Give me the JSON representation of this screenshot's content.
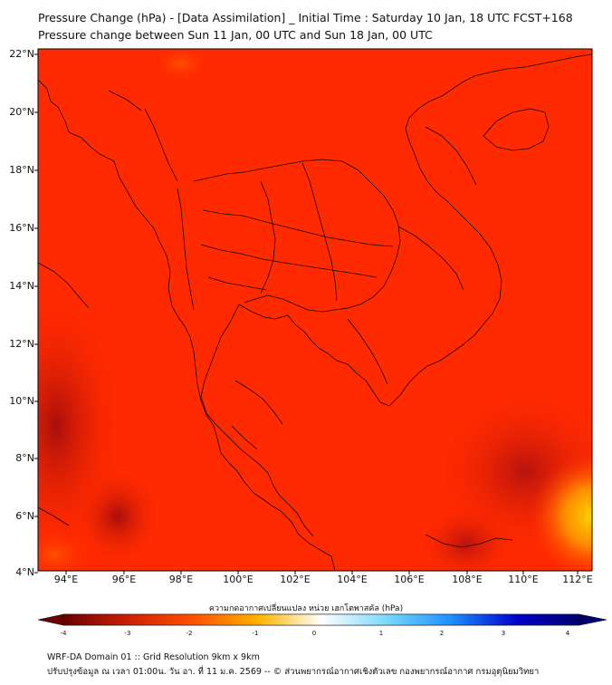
{
  "title": {
    "line1": "Pressure Change (hPa) - [Data Assimilation] _ Initial Time : Saturday 10 Jan, 18 UTC FCST+168",
    "line2": "Pressure change between Sun 11 Jan, 00 UTC and Sun 18 Jan, 00 UTC"
  },
  "map": {
    "lat_labels": [
      "22°N",
      "20°N",
      "18°N",
      "16°N",
      "14°N",
      "12°N",
      "10°N",
      "8°N",
      "6°N",
      "4°N"
    ],
    "lon_labels": [
      "94°E",
      "96°E",
      "98°E",
      "100°E",
      "102°E",
      "104°E",
      "106°E",
      "108°E",
      "110°E",
      "112°E"
    ],
    "field_color": "#ff2a00",
    "low_color": "#b41010",
    "high_color": "#ffc000"
  },
  "colorbar": {
    "label": "ความกดอากาศเปลี่ยนแปลง หน่วย เฮกโตพาสคัล (hPa)",
    "ticks": [
      "-4",
      "-3",
      "-2",
      "-1",
      "0",
      "1",
      "2",
      "3",
      "4"
    ],
    "stops": [
      "#6b0000",
      "#c81e00",
      "#ff5000",
      "#ffb400",
      "#ffffff",
      "#7fdcff",
      "#1e90ff",
      "#0000c8",
      "#00006b"
    ]
  },
  "footer": {
    "line1": "WRF-DA Domain 01 :: Grid Resolution 9km x 9km",
    "line2": "ปรับปรุงข้อมูล ณ เวลา 01:00น. วัน อา. ที่ 11 ม.ค. 2569 -- © ส่วนพยากรณ์อากาศเชิงตัวเลข กองพยากรณ์อากาศ กรมอุตุนิยมวิทยา"
  }
}
